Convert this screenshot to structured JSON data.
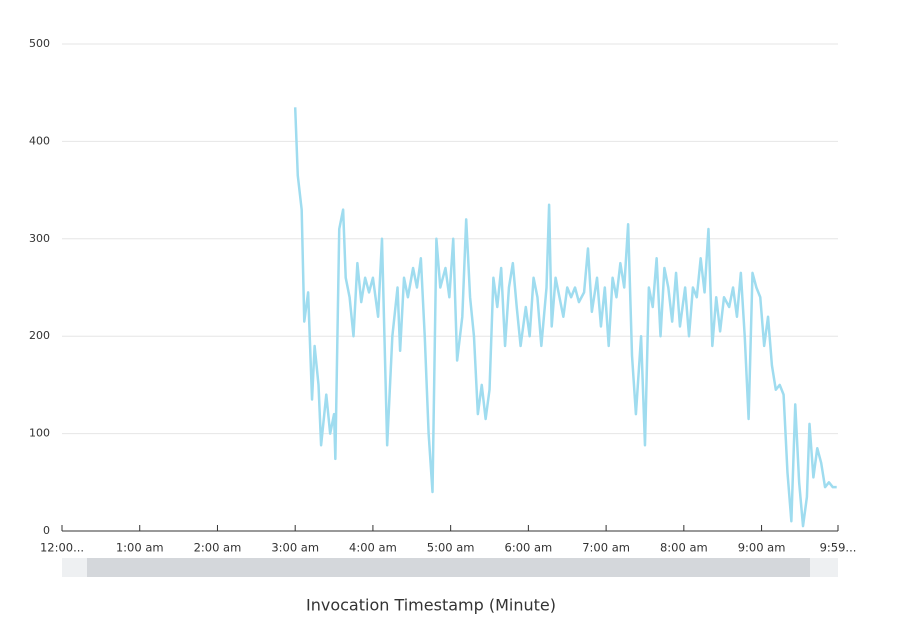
{
  "chart_data": {
    "type": "line",
    "x_label": "Invocation Timestamp (Minute)",
    "x": [
      180,
      182,
      185,
      187,
      190,
      193,
      195,
      198,
      200,
      204,
      207,
      210,
      211,
      214,
      217,
      219,
      222,
      225,
      228,
      231,
      234,
      237,
      240,
      244,
      247,
      251,
      255,
      259,
      261,
      264,
      267,
      271,
      274,
      277,
      280,
      283,
      286,
      289,
      292,
      296,
      299,
      302,
      305,
      309,
      312,
      315,
      318,
      321,
      324,
      327,
      330,
      333,
      336,
      339,
      342,
      345,
      348,
      351,
      354,
      358,
      361,
      364,
      367,
      370,
      374,
      376,
      378,
      381,
      384,
      387,
      390,
      393,
      396,
      399,
      403,
      406,
      409,
      413,
      416,
      419,
      422,
      425,
      428,
      431,
      434,
      437,
      440,
      443,
      447,
      450,
      453,
      456,
      459,
      462,
      465,
      468,
      471,
      474,
      477,
      481,
      484,
      487,
      490,
      493,
      496,
      499,
      502,
      505,
      508,
      511,
      515,
      518,
      521,
      524,
      527,
      530,
      533,
      536,
      539,
      542,
      545,
      548,
      551,
      554,
      557,
      560,
      563,
      566,
      569,
      572,
      575,
      577,
      580,
      583,
      586,
      589,
      592,
      595,
      598
    ],
    "series": [
      {
        "color": "#9fdcef",
        "values": [
          435,
          365,
          330,
          215,
          245,
          135,
          190,
          150,
          88,
          140,
          100,
          120,
          74,
          310,
          330,
          260,
          240,
          200,
          275,
          235,
          260,
          245,
          260,
          220,
          300,
          88,
          200,
          250,
          185,
          260,
          240,
          270,
          250,
          280,
          200,
          100,
          40,
          300,
          250,
          270,
          240,
          300,
          175,
          220,
          320,
          240,
          200,
          120,
          150,
          115,
          145,
          260,
          230,
          270,
          190,
          250,
          275,
          230,
          190,
          230,
          200,
          260,
          240,
          190,
          250,
          335,
          210,
          260,
          240,
          220,
          250,
          240,
          250,
          235,
          245,
          290,
          225,
          260,
          210,
          250,
          190,
          260,
          240,
          275,
          250,
          315,
          180,
          120,
          200,
          88,
          250,
          230,
          280,
          200,
          270,
          250,
          215,
          265,
          210,
          250,
          200,
          250,
          240,
          280,
          245,
          310,
          190,
          240,
          205,
          240,
          230,
          250,
          220,
          265,
          200,
          115,
          265,
          250,
          240,
          190,
          220,
          170,
          145,
          150,
          140,
          60,
          10,
          130,
          50,
          5,
          35,
          110,
          55,
          85,
          70,
          45,
          50,
          45,
          45
        ]
      }
    ],
    "xlim": [
      0,
      599
    ],
    "xticks": [
      {
        "value": 0,
        "label": "12:00..."
      },
      {
        "value": 60,
        "label": "1:00 am"
      },
      {
        "value": 120,
        "label": "2:00 am"
      },
      {
        "value": 180,
        "label": "3:00 am"
      },
      {
        "value": 240,
        "label": "4:00 am"
      },
      {
        "value": 300,
        "label": "5:00 am"
      },
      {
        "value": 360,
        "label": "6:00 am"
      },
      {
        "value": 420,
        "label": "7:00 am"
      },
      {
        "value": 480,
        "label": "8:00 am"
      },
      {
        "value": 540,
        "label": "9:00 am"
      },
      {
        "value": 599,
        "label": "9:59..."
      }
    ],
    "ylim": [
      0,
      500
    ],
    "yticks": [
      0,
      100,
      200,
      300,
      400,
      500
    ],
    "grid": true
  }
}
